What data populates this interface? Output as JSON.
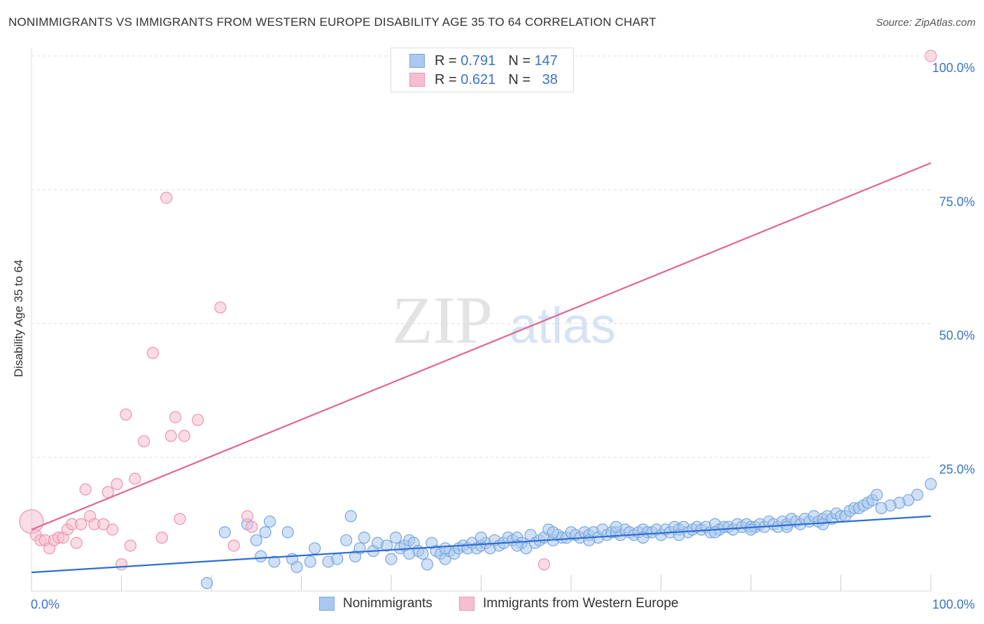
{
  "title": "NONIMMIGRANTS VS IMMIGRANTS FROM WESTERN EUROPE DISABILITY AGE 35 TO 64 CORRELATION CHART",
  "source": "Source: ZipAtlas.com",
  "watermark": {
    "zip": "ZIP",
    "atlas": "atlas"
  },
  "legend_top": [
    {
      "r_label": "R =",
      "r_value": "0.791",
      "n_label": "N =",
      "n_value": "147"
    },
    {
      "r_label": "R =",
      "r_value": "0.621",
      "n_label": "N =",
      "n_value": "38"
    }
  ],
  "legend_bottom": [
    {
      "label": "Nonimmigrants"
    },
    {
      "label": "Immigrants from Western Europe"
    }
  ],
  "colors": {
    "blue_fill": "#aac8f0",
    "blue_stroke": "#7aa6dc",
    "blue_line": "#2f6fcf",
    "pink_fill": "#f6bfcf",
    "pink_stroke": "#ec94ae",
    "pink_line": "#e06692",
    "axis_text": "#3a74c4",
    "grid": "#dddddd"
  },
  "chart_data": {
    "type": "scatter",
    "title": "NONIMMIGRANTS VS IMMIGRANTS FROM WESTERN EUROPE DISABILITY AGE 35 TO 64 CORRELATION CHART",
    "xlabel": "",
    "ylabel": "Disability Age 35 to 64",
    "xlim": [
      0,
      100
    ],
    "ylim": [
      0,
      100
    ],
    "x_tick_labels": [
      {
        "value": 0,
        "label": "0.0%"
      },
      {
        "value": 100,
        "label": "100.0%"
      }
    ],
    "y_tick_labels": [
      {
        "value": 25,
        "label": "25.0%"
      },
      {
        "value": 50,
        "label": "50.0%"
      },
      {
        "value": 75,
        "label": "75.0%"
      },
      {
        "value": 100,
        "label": "100.0%"
      }
    ],
    "x_minor_ticks": [
      10,
      20,
      30,
      40,
      50,
      60,
      70,
      80,
      90
    ],
    "series": [
      {
        "name": "Nonimmigrants",
        "color": "#aac8f0",
        "trend": {
          "x": [
            0,
            100
          ],
          "y": [
            3.5,
            14.0
          ]
        },
        "points": [
          [
            19.5,
            1.5
          ],
          [
            21.5,
            11.0
          ],
          [
            24.0,
            12.5
          ],
          [
            25.0,
            9.5
          ],
          [
            25.5,
            6.5
          ],
          [
            26.0,
            11.0
          ],
          [
            26.5,
            13.0
          ],
          [
            27.0,
            5.5
          ],
          [
            28.5,
            11.0
          ],
          [
            29.0,
            6.0
          ],
          [
            29.5,
            4.5
          ],
          [
            31.0,
            5.5
          ],
          [
            31.5,
            8.0
          ],
          [
            33.0,
            5.5
          ],
          [
            34.0,
            6.0
          ],
          [
            35.0,
            9.5
          ],
          [
            35.5,
            14.0
          ],
          [
            36.0,
            6.5
          ],
          [
            36.5,
            8.0
          ],
          [
            37.0,
            10.0
          ],
          [
            38.0,
            7.5
          ],
          [
            38.5,
            9.0
          ],
          [
            39.5,
            8.5
          ],
          [
            40.0,
            6.0
          ],
          [
            40.5,
            10.0
          ],
          [
            41.0,
            8.0
          ],
          [
            41.5,
            8.5
          ],
          [
            42.0,
            9.5
          ],
          [
            42.5,
            9.0
          ],
          [
            43.0,
            7.5
          ],
          [
            43.5,
            7.0
          ],
          [
            44.0,
            5.0
          ],
          [
            44.5,
            9.0
          ],
          [
            45.0,
            7.5
          ],
          [
            45.5,
            7.0
          ],
          [
            46.0,
            6.0
          ],
          [
            46.5,
            7.5
          ],
          [
            47.0,
            7.0
          ],
          [
            47.5,
            8.0
          ],
          [
            48.0,
            8.5
          ],
          [
            48.5,
            8.0
          ],
          [
            49.0,
            9.0
          ],
          [
            49.5,
            8.0
          ],
          [
            50.0,
            8.5
          ],
          [
            50.5,
            9.0
          ],
          [
            51.0,
            8.0
          ],
          [
            51.5,
            9.5
          ],
          [
            52.0,
            8.5
          ],
          [
            52.5,
            9.0
          ],
          [
            53.0,
            10.0
          ],
          [
            53.5,
            9.5
          ],
          [
            54.0,
            10.0
          ],
          [
            54.5,
            9.0
          ],
          [
            55.0,
            8.0
          ],
          [
            55.5,
            10.5
          ],
          [
            56.0,
            9.0
          ],
          [
            56.5,
            9.5
          ],
          [
            57.0,
            10.0
          ],
          [
            57.5,
            11.5
          ],
          [
            58.0,
            9.5
          ],
          [
            58.5,
            10.5
          ],
          [
            59.0,
            10.0
          ],
          [
            59.5,
            10.0
          ],
          [
            60.0,
            11.0
          ],
          [
            60.5,
            10.5
          ],
          [
            61.0,
            10.0
          ],
          [
            61.5,
            11.0
          ],
          [
            62.0,
            10.5
          ],
          [
            62.5,
            11.0
          ],
          [
            63.0,
            10.0
          ],
          [
            63.5,
            11.5
          ],
          [
            64.0,
            10.5
          ],
          [
            64.5,
            11.0
          ],
          [
            65.0,
            11.0
          ],
          [
            65.5,
            10.5
          ],
          [
            66.0,
            11.5
          ],
          [
            66.5,
            11.0
          ],
          [
            67.0,
            10.5
          ],
          [
            67.5,
            11.0
          ],
          [
            68.0,
            11.5
          ],
          [
            68.5,
            11.0
          ],
          [
            69.0,
            11.0
          ],
          [
            69.5,
            11.5
          ],
          [
            70.0,
            10.5
          ],
          [
            70.5,
            11.5
          ],
          [
            71.0,
            11.0
          ],
          [
            71.5,
            12.0
          ],
          [
            72.0,
            11.5
          ],
          [
            72.5,
            12.0
          ],
          [
            73.0,
            11.0
          ],
          [
            73.5,
            11.5
          ],
          [
            74.0,
            12.0
          ],
          [
            74.5,
            11.5
          ],
          [
            75.0,
            12.0
          ],
          [
            75.5,
            11.0
          ],
          [
            76.0,
            12.5
          ],
          [
            76.5,
            11.5
          ],
          [
            77.0,
            12.0
          ],
          [
            77.5,
            12.0
          ],
          [
            78.0,
            11.5
          ],
          [
            78.5,
            12.5
          ],
          [
            79.0,
            12.0
          ],
          [
            79.5,
            12.5
          ],
          [
            80.0,
            12.0
          ],
          [
            80.5,
            12.0
          ],
          [
            81.0,
            12.5
          ],
          [
            81.5,
            12.0
          ],
          [
            82.0,
            13.0
          ],
          [
            82.5,
            12.5
          ],
          [
            83.0,
            12.0
          ],
          [
            83.5,
            13.0
          ],
          [
            84.0,
            12.5
          ],
          [
            84.5,
            13.5
          ],
          [
            85.0,
            13.0
          ],
          [
            85.5,
            12.5
          ],
          [
            86.0,
            13.5
          ],
          [
            86.5,
            13.0
          ],
          [
            87.0,
            14.0
          ],
          [
            87.5,
            13.0
          ],
          [
            88.0,
            13.5
          ],
          [
            88.5,
            14.0
          ],
          [
            89.0,
            13.5
          ],
          [
            89.5,
            14.5
          ],
          [
            90.0,
            14.0
          ],
          [
            90.5,
            14.0
          ],
          [
            91.0,
            15.0
          ],
          [
            91.5,
            15.5
          ],
          [
            92.0,
            15.5
          ],
          [
            92.5,
            16.0
          ],
          [
            93.0,
            16.5
          ],
          [
            93.5,
            17.0
          ],
          [
            94.0,
            18.0
          ],
          [
            100.0,
            20.0
          ],
          [
            98.5,
            18.0
          ],
          [
            97.5,
            17.0
          ],
          [
            96.5,
            16.5
          ],
          [
            95.5,
            16.0
          ],
          [
            94.5,
            15.5
          ],
          [
            65.0,
            12.0
          ],
          [
            68.0,
            10.0
          ],
          [
            72.0,
            10.5
          ],
          [
            76.0,
            11.0
          ],
          [
            80.0,
            11.5
          ],
          [
            84.0,
            12.0
          ],
          [
            88.0,
            12.5
          ],
          [
            58.0,
            11.0
          ],
          [
            62.0,
            9.5
          ],
          [
            54.0,
            8.5
          ],
          [
            50.0,
            10.0
          ],
          [
            46.0,
            8.0
          ],
          [
            42.0,
            7.0
          ]
        ]
      },
      {
        "name": "Immigrants from Western Europe",
        "color": "#f6bfcf",
        "trend": {
          "x": [
            0,
            100
          ],
          "y": [
            11.5,
            80.0
          ]
        },
        "points": [
          [
            0.0,
            13.0
          ],
          [
            0.5,
            10.5
          ],
          [
            1.0,
            9.5
          ],
          [
            1.5,
            9.5
          ],
          [
            2.0,
            8.0
          ],
          [
            2.5,
            9.5
          ],
          [
            3.0,
            10.0
          ],
          [
            3.5,
            10.0
          ],
          [
            4.0,
            11.5
          ],
          [
            4.5,
            12.5
          ],
          [
            5.0,
            9.0
          ],
          [
            5.5,
            12.5
          ],
          [
            6.0,
            19.0
          ],
          [
            6.5,
            14.0
          ],
          [
            7.0,
            12.5
          ],
          [
            8.0,
            12.5
          ],
          [
            8.5,
            18.5
          ],
          [
            9.0,
            11.5
          ],
          [
            9.5,
            20.0
          ],
          [
            10.0,
            5.0
          ],
          [
            10.5,
            33.0
          ],
          [
            11.0,
            8.5
          ],
          [
            11.5,
            21.0
          ],
          [
            12.5,
            28.0
          ],
          [
            13.5,
            44.5
          ],
          [
            14.5,
            10.0
          ],
          [
            15.0,
            73.5
          ],
          [
            15.5,
            29.0
          ],
          [
            16.0,
            32.5
          ],
          [
            16.5,
            13.5
          ],
          [
            17.0,
            29.0
          ],
          [
            18.5,
            32.0
          ],
          [
            21.0,
            53.0
          ],
          [
            22.5,
            8.5
          ],
          [
            24.0,
            14.0
          ],
          [
            24.5,
            12.0
          ],
          [
            57.0,
            5.0
          ],
          [
            100.0,
            100.0
          ]
        ]
      }
    ]
  }
}
